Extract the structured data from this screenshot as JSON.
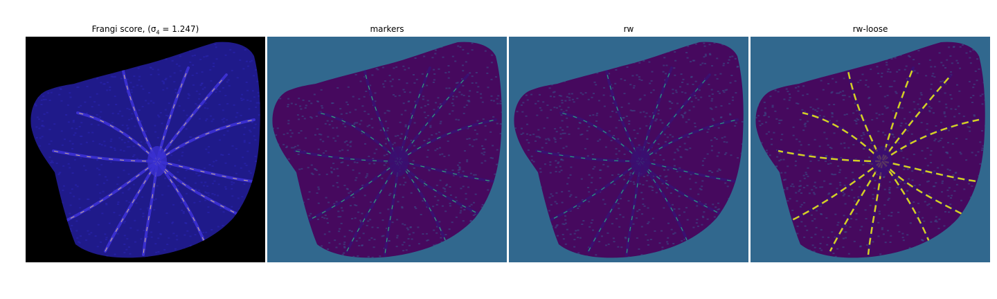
{
  "figure": {
    "panels": [
      {
        "id": "frangi",
        "title": "Frangi score, ",
        "title_math": "(σ",
        "title_sub": "4",
        "title_tail": " = 1.247)",
        "background": "#000000",
        "blob": "#1f1a8a",
        "vessel": "#3a2fcf",
        "highlight": "#f7d37a"
      },
      {
        "id": "markers",
        "title": "markers",
        "background": "#31688e",
        "blob": "#46095e",
        "vessel": "#3b0f70",
        "highlight": "#35b779"
      },
      {
        "id": "rw",
        "title": "rw",
        "background": "#31688e",
        "blob": "#46095e",
        "vessel": "#3b0f70",
        "highlight": "#2ab07f"
      },
      {
        "id": "rw-loose",
        "title": "rw-loose",
        "background": "#31688e",
        "blob": "#46095e",
        "vessel": "#3b0f70",
        "highlight": "#e8e419"
      }
    ]
  }
}
